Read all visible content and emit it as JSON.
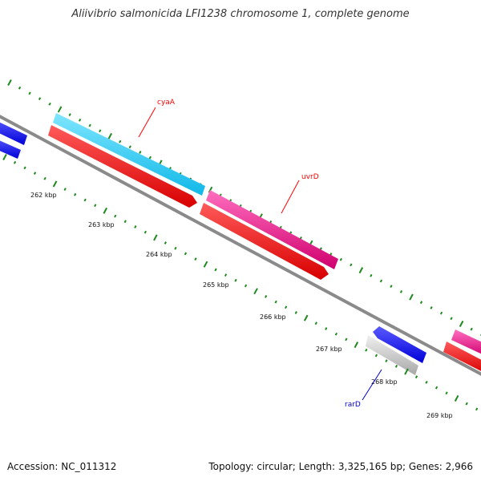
{
  "title": "Aliivibrio salmonicida LFI1238 chromosome 1, complete genome",
  "footer": {
    "accession": "Accession: NC_011312",
    "summary": "Topology: circular; Length: 3,325,165 bp; Genes: 2,966"
  },
  "colors": {
    "backbone": "#8a8a8a",
    "tick": "#1e8a1e",
    "cds_forward": "#e6007e",
    "cds_reverse": "#0000ff",
    "orf_red": "#ff0000",
    "cyaA_fill": "#18c8f5",
    "rarD_gray": "#c0c0c0",
    "label_red": "#ff0000",
    "label_blue": "#0000cc"
  },
  "scale": {
    "labels": [
      "262 kbp",
      "263 kbp",
      "264 kbp",
      "265 kbp",
      "266 kbp",
      "267 kbp",
      "268 kbp",
      "269 kbp"
    ]
  },
  "genes": [
    {
      "name": "cyaA",
      "color": "#18c8f5",
      "label_color": "#ff0000"
    },
    {
      "name": "uvrD",
      "color": "#e6007e",
      "label_color": "#ff0000"
    },
    {
      "name": "rarD",
      "color": "#c0c0c0",
      "label_color": "#0000cc"
    }
  ]
}
